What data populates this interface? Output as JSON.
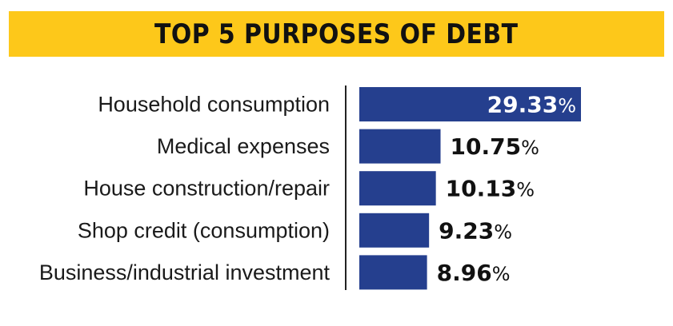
{
  "title": "TOP 5 PURPOSES OF DEBT",
  "colors": {
    "banner": "#fdc81a",
    "bar": "#253f8e",
    "text": "#111111",
    "inside_label": "#ffffff"
  },
  "chart_data": {
    "type": "bar",
    "orientation": "horizontal",
    "title": "TOP 5 PURPOSES OF DEBT",
    "categories": [
      "Household consumption",
      "Medical expenses",
      "House construction/repair",
      "Shop credit (consumption)",
      "Business/industrial investment"
    ],
    "values": [
      29.33,
      10.75,
      10.13,
      9.23,
      8.96
    ],
    "value_labels": [
      "29.33",
      "10.75",
      "10.13",
      "9.23",
      "8.96"
    ],
    "unit": "%",
    "xlabel": "",
    "ylabel": "",
    "grid": false,
    "legend": "none"
  }
}
